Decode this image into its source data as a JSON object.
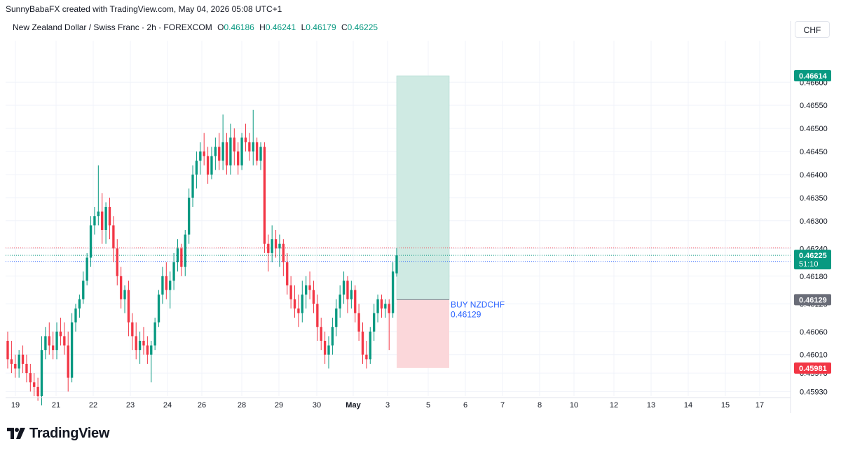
{
  "header": {
    "caption": "SunnyBabaFX created with TradingView.com, May 04, 2026 05:08 UTC+1"
  },
  "symbol": {
    "description": "New Zealand Dollar / Swiss Franc · 2h · FOREXCOM",
    "open_label": "O",
    "open": "0.46186",
    "high_label": "H",
    "high": "0.46241",
    "low_label": "L",
    "low": "0.46179",
    "close_label": "C",
    "close": "0.46225"
  },
  "currency_button": "CHF",
  "footer": {
    "logo_text": "TradingView"
  },
  "colors": {
    "up": "#089981",
    "down": "#f23645",
    "grid": "#f0f3fa",
    "profit_zone": "#cfeae3",
    "loss_zone": "#fbd7da",
    "entry_label": "#6a6d78",
    "position_text": "#2962ff"
  },
  "chart_data": {
    "type": "candlestick",
    "symbol": "NZDCHF",
    "interval": "2h",
    "y_ticks": [
      "0.46600",
      "0.46550",
      "0.46500",
      "0.46450",
      "0.46400",
      "0.46350",
      "0.46300",
      "0.46240",
      "0.46180",
      "0.46120",
      "0.46060",
      "0.46010",
      "0.45970",
      "0.45930"
    ],
    "x_ticks": [
      "19",
      "21",
      "22",
      "23",
      "24",
      "26",
      "28",
      "29",
      "30",
      "May",
      "3",
      "5",
      "6",
      "7",
      "8",
      "10",
      "12",
      "13",
      "14",
      "15",
      "17"
    ],
    "ylim": [
      0.4592,
      0.4669
    ],
    "grid": true,
    "candles": [
      {
        "o": 0.4604,
        "h": 0.4606,
        "l": 0.4598,
        "c": 0.46
      },
      {
        "o": 0.46,
        "h": 0.4604,
        "l": 0.4597,
        "c": 0.4599
      },
      {
        "o": 0.4599,
        "h": 0.4601,
        "l": 0.4596,
        "c": 0.4598
      },
      {
        "o": 0.4598,
        "h": 0.4602,
        "l": 0.4596,
        "c": 0.4601
      },
      {
        "o": 0.4601,
        "h": 0.4603,
        "l": 0.4597,
        "c": 0.4599
      },
      {
        "o": 0.4599,
        "h": 0.4601,
        "l": 0.4595,
        "c": 0.4597
      },
      {
        "o": 0.4597,
        "h": 0.4599,
        "l": 0.4593,
        "c": 0.4595
      },
      {
        "o": 0.4595,
        "h": 0.4597,
        "l": 0.4592,
        "c": 0.4594
      },
      {
        "o": 0.4594,
        "h": 0.4596,
        "l": 0.4591,
        "c": 0.4592
      },
      {
        "o": 0.4592,
        "h": 0.4605,
        "l": 0.459,
        "c": 0.4602
      },
      {
        "o": 0.4602,
        "h": 0.4607,
        "l": 0.46,
        "c": 0.4605
      },
      {
        "o": 0.4605,
        "h": 0.4608,
        "l": 0.4601,
        "c": 0.4603
      },
      {
        "o": 0.4603,
        "h": 0.4606,
        "l": 0.46,
        "c": 0.4602
      },
      {
        "o": 0.4602,
        "h": 0.4608,
        "l": 0.46,
        "c": 0.4606
      },
      {
        "o": 0.4606,
        "h": 0.4609,
        "l": 0.4603,
        "c": 0.4605
      },
      {
        "o": 0.4605,
        "h": 0.4608,
        "l": 0.4601,
        "c": 0.4603
      },
      {
        "o": 0.4603,
        "h": 0.4606,
        "l": 0.4593,
        "c": 0.4596
      },
      {
        "o": 0.4596,
        "h": 0.461,
        "l": 0.4595,
        "c": 0.4608
      },
      {
        "o": 0.4608,
        "h": 0.4612,
        "l": 0.4606,
        "c": 0.4611
      },
      {
        "o": 0.4611,
        "h": 0.4614,
        "l": 0.4609,
        "c": 0.4613
      },
      {
        "o": 0.4613,
        "h": 0.4619,
        "l": 0.4612,
        "c": 0.4617
      },
      {
        "o": 0.4617,
        "h": 0.4623,
        "l": 0.4616,
        "c": 0.4622
      },
      {
        "o": 0.4622,
        "h": 0.4631,
        "l": 0.462,
        "c": 0.4629
      },
      {
        "o": 0.4629,
        "h": 0.4633,
        "l": 0.4627,
        "c": 0.4631
      },
      {
        "o": 0.4631,
        "h": 0.4642,
        "l": 0.4629,
        "c": 0.4632
      },
      {
        "o": 0.4632,
        "h": 0.4636,
        "l": 0.4625,
        "c": 0.4628
      },
      {
        "o": 0.4628,
        "h": 0.4634,
        "l": 0.4625,
        "c": 0.4633
      },
      {
        "o": 0.4633,
        "h": 0.4635,
        "l": 0.4626,
        "c": 0.4629
      },
      {
        "o": 0.4629,
        "h": 0.4631,
        "l": 0.4621,
        "c": 0.4624
      },
      {
        "o": 0.4624,
        "h": 0.4626,
        "l": 0.4616,
        "c": 0.4618
      },
      {
        "o": 0.4618,
        "h": 0.462,
        "l": 0.4611,
        "c": 0.4613
      },
      {
        "o": 0.4613,
        "h": 0.4616,
        "l": 0.461,
        "c": 0.4615
      },
      {
        "o": 0.4615,
        "h": 0.4617,
        "l": 0.4605,
        "c": 0.4608
      },
      {
        "o": 0.4608,
        "h": 0.461,
        "l": 0.4602,
        "c": 0.4605
      },
      {
        "o": 0.4605,
        "h": 0.4608,
        "l": 0.46,
        "c": 0.4602
      },
      {
        "o": 0.4602,
        "h": 0.4606,
        "l": 0.4599,
        "c": 0.4604
      },
      {
        "o": 0.4604,
        "h": 0.4607,
        "l": 0.4601,
        "c": 0.4603
      },
      {
        "o": 0.4603,
        "h": 0.4605,
        "l": 0.4599,
        "c": 0.4601
      },
      {
        "o": 0.4601,
        "h": 0.4604,
        "l": 0.4595,
        "c": 0.4603
      },
      {
        "o": 0.4603,
        "h": 0.4609,
        "l": 0.4602,
        "c": 0.4608
      },
      {
        "o": 0.4608,
        "h": 0.4615,
        "l": 0.4607,
        "c": 0.4614
      },
      {
        "o": 0.4614,
        "h": 0.462,
        "l": 0.4612,
        "c": 0.4618
      },
      {
        "o": 0.4618,
        "h": 0.4621,
        "l": 0.4613,
        "c": 0.4615
      },
      {
        "o": 0.4615,
        "h": 0.4619,
        "l": 0.4611,
        "c": 0.4617
      },
      {
        "o": 0.4617,
        "h": 0.4623,
        "l": 0.4615,
        "c": 0.4621
      },
      {
        "o": 0.4621,
        "h": 0.4626,
        "l": 0.4619,
        "c": 0.4624
      },
      {
        "o": 0.4624,
        "h": 0.4625,
        "l": 0.4618,
        "c": 0.462
      },
      {
        "o": 0.462,
        "h": 0.4628,
        "l": 0.4618,
        "c": 0.4627
      },
      {
        "o": 0.4627,
        "h": 0.4637,
        "l": 0.4625,
        "c": 0.4635
      },
      {
        "o": 0.4635,
        "h": 0.4642,
        "l": 0.4633,
        "c": 0.464
      },
      {
        "o": 0.464,
        "h": 0.4645,
        "l": 0.4637,
        "c": 0.4643
      },
      {
        "o": 0.4643,
        "h": 0.4647,
        "l": 0.464,
        "c": 0.4645
      },
      {
        "o": 0.4645,
        "h": 0.4649,
        "l": 0.4642,
        "c": 0.4644
      },
      {
        "o": 0.4644,
        "h": 0.4646,
        "l": 0.4638,
        "c": 0.464
      },
      {
        "o": 0.464,
        "h": 0.4646,
        "l": 0.4639,
        "c": 0.4644
      },
      {
        "o": 0.4644,
        "h": 0.4648,
        "l": 0.4641,
        "c": 0.4646
      },
      {
        "o": 0.4646,
        "h": 0.4649,
        "l": 0.4641,
        "c": 0.4643
      },
      {
        "o": 0.4643,
        "h": 0.4653,
        "l": 0.4641,
        "c": 0.4647
      },
      {
        "o": 0.4647,
        "h": 0.4649,
        "l": 0.464,
        "c": 0.4642
      },
      {
        "o": 0.4642,
        "h": 0.4651,
        "l": 0.464,
        "c": 0.4648
      },
      {
        "o": 0.4648,
        "h": 0.465,
        "l": 0.4642,
        "c": 0.4645
      },
      {
        "o": 0.4645,
        "h": 0.4647,
        "l": 0.464,
        "c": 0.4642
      },
      {
        "o": 0.4642,
        "h": 0.4649,
        "l": 0.4641,
        "c": 0.4648
      },
      {
        "o": 0.4648,
        "h": 0.4651,
        "l": 0.4645,
        "c": 0.4647
      },
      {
        "o": 0.4647,
        "h": 0.4649,
        "l": 0.4643,
        "c": 0.4645
      },
      {
        "o": 0.4645,
        "h": 0.4654,
        "l": 0.4642,
        "c": 0.4647
      },
      {
        "o": 0.4647,
        "h": 0.4648,
        "l": 0.4642,
        "c": 0.4643
      },
      {
        "o": 0.4643,
        "h": 0.4647,
        "l": 0.4641,
        "c": 0.4646
      },
      {
        "o": 0.4646,
        "h": 0.4647,
        "l": 0.4623,
        "c": 0.4625
      },
      {
        "o": 0.4625,
        "h": 0.4627,
        "l": 0.4619,
        "c": 0.4623
      },
      {
        "o": 0.4623,
        "h": 0.4629,
        "l": 0.4621,
        "c": 0.4626
      },
      {
        "o": 0.4626,
        "h": 0.4628,
        "l": 0.4622,
        "c": 0.4624
      },
      {
        "o": 0.4624,
        "h": 0.4627,
        "l": 0.462,
        "c": 0.4625
      },
      {
        "o": 0.4625,
        "h": 0.4626,
        "l": 0.4618,
        "c": 0.4621
      },
      {
        "o": 0.4621,
        "h": 0.4623,
        "l": 0.4614,
        "c": 0.4616
      },
      {
        "o": 0.4616,
        "h": 0.4618,
        "l": 0.4611,
        "c": 0.4613
      },
      {
        "o": 0.4613,
        "h": 0.4616,
        "l": 0.4609,
        "c": 0.4611
      },
      {
        "o": 0.4611,
        "h": 0.4614,
        "l": 0.4607,
        "c": 0.461
      },
      {
        "o": 0.461,
        "h": 0.4617,
        "l": 0.4608,
        "c": 0.4614
      },
      {
        "o": 0.4614,
        "h": 0.4618,
        "l": 0.4611,
        "c": 0.4616
      },
      {
        "o": 0.4616,
        "h": 0.4619,
        "l": 0.4613,
        "c": 0.4615
      },
      {
        "o": 0.4615,
        "h": 0.4617,
        "l": 0.461,
        "c": 0.4612
      },
      {
        "o": 0.4612,
        "h": 0.4614,
        "l": 0.4604,
        "c": 0.4607
      },
      {
        "o": 0.4607,
        "h": 0.4609,
        "l": 0.4602,
        "c": 0.4604
      },
      {
        "o": 0.4604,
        "h": 0.4606,
        "l": 0.4599,
        "c": 0.4601
      },
      {
        "o": 0.4601,
        "h": 0.4605,
        "l": 0.4598,
        "c": 0.4603
      },
      {
        "o": 0.4603,
        "h": 0.4609,
        "l": 0.4601,
        "c": 0.4607
      },
      {
        "o": 0.4607,
        "h": 0.4613,
        "l": 0.4605,
        "c": 0.4611
      },
      {
        "o": 0.4611,
        "h": 0.4616,
        "l": 0.4609,
        "c": 0.4614
      },
      {
        "o": 0.4614,
        "h": 0.4619,
        "l": 0.4612,
        "c": 0.4617
      },
      {
        "o": 0.4617,
        "h": 0.4618,
        "l": 0.461,
        "c": 0.4613
      },
      {
        "o": 0.4613,
        "h": 0.4617,
        "l": 0.4611,
        "c": 0.4615
      },
      {
        "o": 0.4615,
        "h": 0.4616,
        "l": 0.4608,
        "c": 0.461
      },
      {
        "o": 0.461,
        "h": 0.4612,
        "l": 0.4604,
        "c": 0.4606
      },
      {
        "o": 0.4606,
        "h": 0.4608,
        "l": 0.4599,
        "c": 0.4601
      },
      {
        "o": 0.4601,
        "h": 0.4604,
        "l": 0.4598,
        "c": 0.46
      },
      {
        "o": 0.46,
        "h": 0.4607,
        "l": 0.4599,
        "c": 0.4606
      },
      {
        "o": 0.4606,
        "h": 0.4612,
        "l": 0.4604,
        "c": 0.461
      },
      {
        "o": 0.461,
        "h": 0.4614,
        "l": 0.4608,
        "c": 0.4613
      },
      {
        "o": 0.4613,
        "h": 0.4614,
        "l": 0.4609,
        "c": 0.4611
      },
      {
        "o": 0.4611,
        "h": 0.4613,
        "l": 0.4609,
        "c": 0.4612
      },
      {
        "o": 0.4612,
        "h": 0.4613,
        "l": 0.4602,
        "c": 0.461
      },
      {
        "o": 0.461,
        "h": 0.4621,
        "l": 0.4609,
        "c": 0.4619
      },
      {
        "o": 0.46186,
        "h": 0.46241,
        "l": 0.46179,
        "c": 0.46225
      }
    ],
    "position": {
      "label": "BUY NZDCHF",
      "side": "long",
      "entry": 0.46129,
      "entry_text": "0.46129",
      "target": 0.46614,
      "target_text": "0.46614",
      "stop": 0.45981,
      "stop_text": "0.45981"
    },
    "last_price": {
      "value": 0.46225,
      "text": "0.46225",
      "countdown": "51:10"
    },
    "high_line": 0.46241,
    "bid_line": 0.46212
  }
}
